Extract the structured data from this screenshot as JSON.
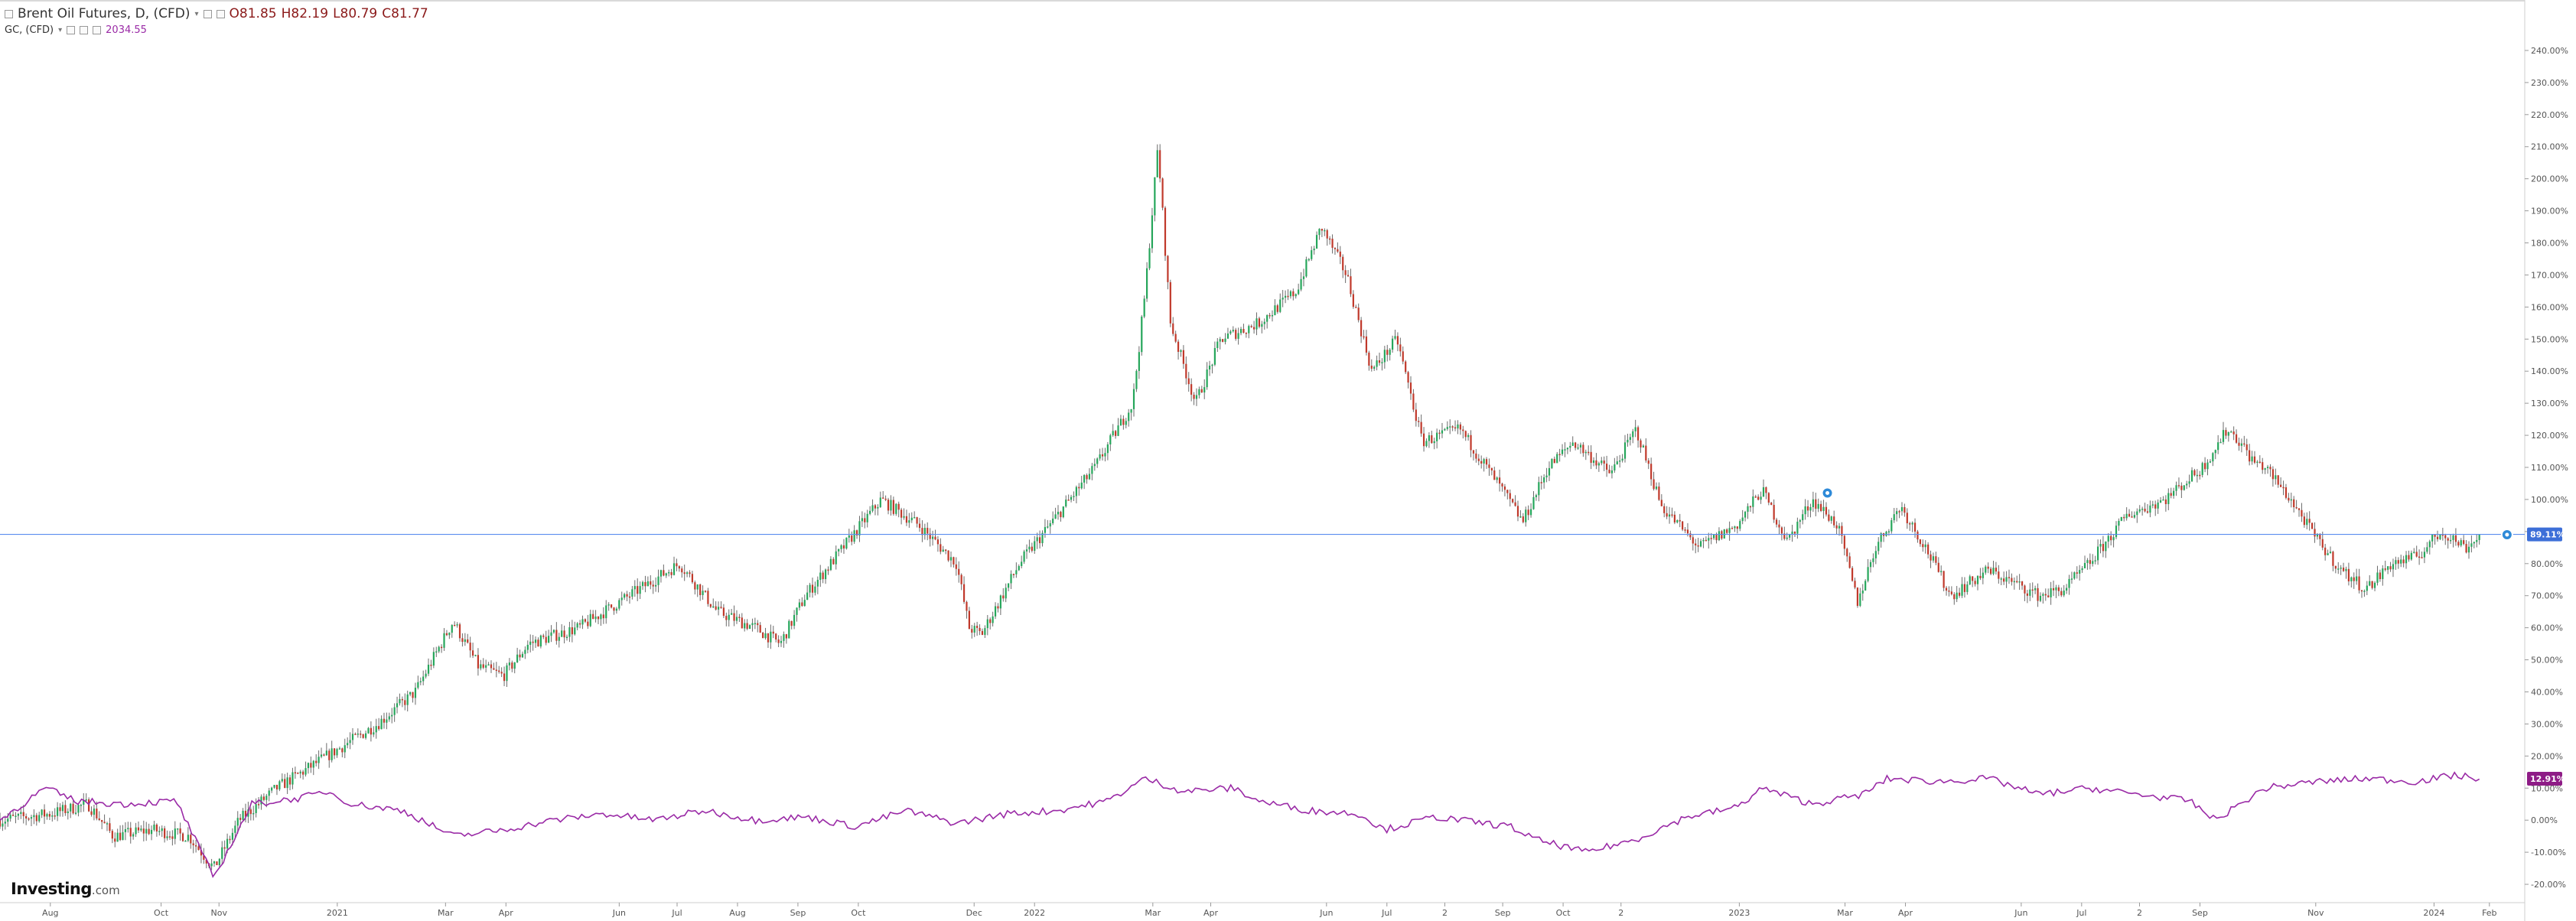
{
  "legend": {
    "main": {
      "symbol_label": "Brent Oil Futures, D, (CFD)",
      "open": "O81.85",
      "high": "H82.19",
      "low": "L80.79",
      "close": "C81.77"
    },
    "overlay": {
      "symbol_label": "GC, (CFD)",
      "value": "2034.55"
    }
  },
  "brand": {
    "name": "Investing",
    "suffix": ".com"
  },
  "colors": {
    "up": "#26a65b",
    "down": "#c0392b",
    "overlay": "#9a2aa6",
    "hline": "#5b8def",
    "hline_tag": "#3d6fd8",
    "overlay_tag": "#8e1c86"
  },
  "chart_data": {
    "type": "line",
    "y_unit": "percent change",
    "ylim": [
      -25,
      245
    ],
    "y_ticks": [
      "240.00%",
      "230.00%",
      "220.00%",
      "210.00%",
      "200.00%",
      "190.00%",
      "180.00%",
      "170.00%",
      "160.00%",
      "150.00%",
      "140.00%",
      "130.00%",
      "120.00%",
      "110.00%",
      "100.00%",
      "90.00%",
      "80.00%",
      "70.00%",
      "60.00%",
      "50.00%",
      "40.00%",
      "30.00%",
      "20.00%",
      "10.00%",
      "0.00%",
      "-10.00%",
      "-20.00%"
    ],
    "x_labels": [
      {
        "label": "Aug",
        "t": 0.02
      },
      {
        "label": "Oct",
        "t": 0.064
      },
      {
        "label": "Nov",
        "t": 0.087
      },
      {
        "label": "2021",
        "t": 0.134
      },
      {
        "label": "Mar",
        "t": 0.177
      },
      {
        "label": "Apr",
        "t": 0.201
      },
      {
        "label": "Jun",
        "t": 0.246
      },
      {
        "label": "Jul",
        "t": 0.269
      },
      {
        "label": "Aug",
        "t": 0.293
      },
      {
        "label": "Sep",
        "t": 0.317
      },
      {
        "label": "Oct",
        "t": 0.341
      },
      {
        "label": "Dec",
        "t": 0.387
      },
      {
        "label": "2022",
        "t": 0.411
      },
      {
        "label": "Mar",
        "t": 0.458
      },
      {
        "label": "Apr",
        "t": 0.481
      },
      {
        "label": "Jun",
        "t": 0.527
      },
      {
        "label": "Jul",
        "t": 0.551
      },
      {
        "label": "2",
        "t": 0.574
      },
      {
        "label": "Sep",
        "t": 0.597
      },
      {
        "label": "Oct",
        "t": 0.621
      },
      {
        "label": "2",
        "t": 0.644
      },
      {
        "label": "2023",
        "t": 0.691
      },
      {
        "label": "Mar",
        "t": 0.733
      },
      {
        "label": "Apr",
        "t": 0.757
      },
      {
        "label": "Jun",
        "t": 0.803
      },
      {
        "label": "Jul",
        "t": 0.827
      },
      {
        "label": "2",
        "t": 0.85
      },
      {
        "label": "Sep",
        "t": 0.874
      },
      {
        "label": "Nov",
        "t": 0.92
      },
      {
        "label": "2024",
        "t": 0.967
      },
      {
        "label": "Feb",
        "t": 0.989
      }
    ],
    "series": [
      {
        "name": "Brent Oil Futures, D, (CFD)",
        "style": "candles",
        "anchors": [
          [
            0,
            0
          ],
          [
            0.02,
            2
          ],
          [
            0.035,
            5
          ],
          [
            0.045,
            -5
          ],
          [
            0.06,
            -3
          ],
          [
            0.075,
            -5
          ],
          [
            0.085,
            -15
          ],
          [
            0.095,
            0
          ],
          [
            0.11,
            10
          ],
          [
            0.13,
            20
          ],
          [
            0.15,
            30
          ],
          [
            0.165,
            40
          ],
          [
            0.18,
            62
          ],
          [
            0.19,
            48
          ],
          [
            0.2,
            45
          ],
          [
            0.21,
            55
          ],
          [
            0.23,
            60
          ],
          [
            0.25,
            70
          ],
          [
            0.27,
            80
          ],
          [
            0.285,
            65
          ],
          [
            0.3,
            60
          ],
          [
            0.31,
            55
          ],
          [
            0.32,
            70
          ],
          [
            0.335,
            85
          ],
          [
            0.35,
            100
          ],
          [
            0.365,
            92
          ],
          [
            0.38,
            80
          ],
          [
            0.385,
            60
          ],
          [
            0.39,
            58
          ],
          [
            0.405,
            80
          ],
          [
            0.42,
            95
          ],
          [
            0.435,
            110
          ],
          [
            0.45,
            130
          ],
          [
            0.455,
            165
          ],
          [
            0.46,
            210
          ],
          [
            0.465,
            155
          ],
          [
            0.475,
            130
          ],
          [
            0.485,
            150
          ],
          [
            0.5,
            155
          ],
          [
            0.515,
            165
          ],
          [
            0.525,
            185
          ],
          [
            0.535,
            170
          ],
          [
            0.545,
            140
          ],
          [
            0.555,
            150
          ],
          [
            0.565,
            118
          ],
          [
            0.58,
            122
          ],
          [
            0.595,
            105
          ],
          [
            0.605,
            93
          ],
          [
            0.615,
            110
          ],
          [
            0.625,
            118
          ],
          [
            0.64,
            108
          ],
          [
            0.65,
            122
          ],
          [
            0.66,
            98
          ],
          [
            0.675,
            85
          ],
          [
            0.69,
            92
          ],
          [
            0.7,
            103
          ],
          [
            0.71,
            87
          ],
          [
            0.72,
            100
          ],
          [
            0.73,
            92
          ],
          [
            0.738,
            68
          ],
          [
            0.745,
            85
          ],
          [
            0.755,
            98
          ],
          [
            0.765,
            85
          ],
          [
            0.775,
            70
          ],
          [
            0.79,
            78
          ],
          [
            0.8,
            74
          ],
          [
            0.81,
            70
          ],
          [
            0.82,
            72
          ],
          [
            0.83,
            80
          ],
          [
            0.845,
            95
          ],
          [
            0.86,
            100
          ],
          [
            0.875,
            110
          ],
          [
            0.885,
            122
          ],
          [
            0.89,
            118
          ],
          [
            0.895,
            112
          ],
          [
            0.9,
            110
          ],
          [
            0.91,
            100
          ],
          [
            0.92,
            88
          ],
          [
            0.93,
            78
          ],
          [
            0.94,
            72
          ],
          [
            0.95,
            80
          ],
          [
            0.96,
            82
          ],
          [
            0.97,
            90
          ],
          [
            0.98,
            85
          ],
          [
            0.985,
            89
          ]
        ]
      },
      {
        "name": "GC, (CFD)",
        "style": "line",
        "anchors": [
          [
            0,
            0
          ],
          [
            0.018,
            10
          ],
          [
            0.03,
            6
          ],
          [
            0.05,
            5
          ],
          [
            0.07,
            6
          ],
          [
            0.085,
            -18
          ],
          [
            0.1,
            5
          ],
          [
            0.12,
            7
          ],
          [
            0.13,
            9
          ],
          [
            0.14,
            5
          ],
          [
            0.16,
            3
          ],
          [
            0.18,
            -5
          ],
          [
            0.2,
            -3
          ],
          [
            0.22,
            0
          ],
          [
            0.24,
            2
          ],
          [
            0.26,
            0
          ],
          [
            0.28,
            3
          ],
          [
            0.3,
            0
          ],
          [
            0.32,
            1
          ],
          [
            0.34,
            -2
          ],
          [
            0.36,
            3
          ],
          [
            0.38,
            -1
          ],
          [
            0.4,
            2
          ],
          [
            0.42,
            3
          ],
          [
            0.44,
            6
          ],
          [
            0.455,
            13
          ],
          [
            0.47,
            9
          ],
          [
            0.49,
            10
          ],
          [
            0.5,
            6
          ],
          [
            0.52,
            3
          ],
          [
            0.54,
            2
          ],
          [
            0.55,
            -3
          ],
          [
            0.57,
            1
          ],
          [
            0.58,
            0
          ],
          [
            0.6,
            -2
          ],
          [
            0.61,
            -6
          ],
          [
            0.63,
            -10
          ],
          [
            0.65,
            -6
          ],
          [
            0.67,
            1
          ],
          [
            0.69,
            4
          ],
          [
            0.7,
            10
          ],
          [
            0.72,
            5
          ],
          [
            0.74,
            8
          ],
          [
            0.75,
            13
          ],
          [
            0.77,
            12
          ],
          [
            0.79,
            13
          ],
          [
            0.81,
            8
          ],
          [
            0.83,
            10
          ],
          [
            0.85,
            8
          ],
          [
            0.87,
            6
          ],
          [
            0.88,
            0
          ],
          [
            0.9,
            10
          ],
          [
            0.92,
            12
          ],
          [
            0.94,
            13
          ],
          [
            0.96,
            12
          ],
          [
            0.975,
            14
          ],
          [
            0.985,
            13
          ]
        ]
      }
    ],
    "hline": {
      "value": 89.11,
      "label": "89.11%"
    },
    "overlay_last": {
      "value": 12.91,
      "label": "12.91%"
    },
    "markers": [
      {
        "t": 0.726,
        "v": 102
      },
      {
        "t": 0.996,
        "v": 89
      }
    ],
    "grid": false,
    "axis_position": "right"
  }
}
